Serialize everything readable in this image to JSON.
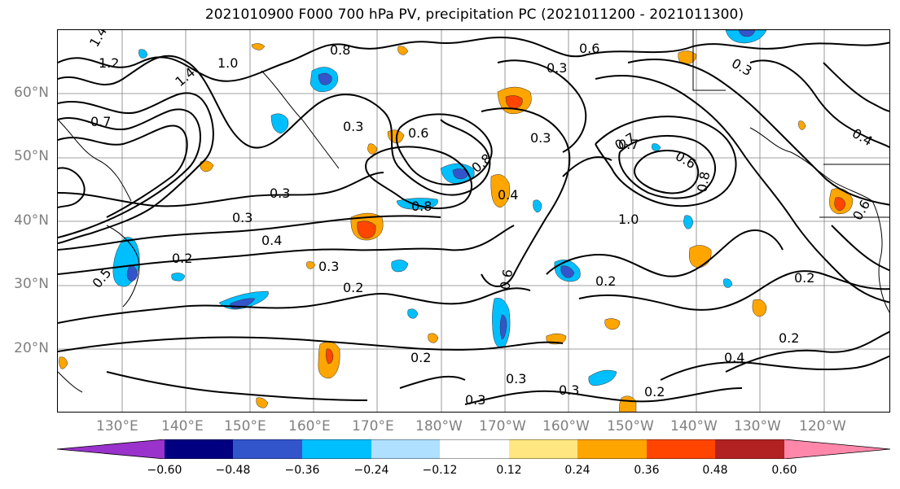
{
  "title": "2021010900 F000 700 hPa PV, precipitation PC (2021011200 - 2021011300)",
  "lat_labels": [
    "60°N",
    "50°N",
    "40°N",
    "30°N",
    "20°N"
  ],
  "lon_labels": [
    "130°E",
    "140°E",
    "150°E",
    "160°E",
    "170°E",
    "180°W",
    "170°W",
    "160°W",
    "150°W",
    "140°W",
    "130°W",
    "120°W"
  ],
  "contour_labels": [
    "1.4",
    "1.2",
    "1.0",
    "0.8",
    "0.6",
    "0.3",
    "0.7",
    "1.4",
    "0.4",
    "0.3",
    "0.3",
    "0.6",
    "0.7",
    "0.8",
    "0.8",
    "0.3",
    "0.4",
    "0.2",
    "0.3",
    "0.2",
    "0.3",
    "0.3",
    "0.2",
    "0.4",
    "0.2",
    "0.3",
    "0.2",
    "0.3",
    "0.5",
    "0.6",
    "0.7",
    "1.0",
    "0.8",
    "0.2",
    "0.3",
    "0.4",
    "0.6",
    "0.6",
    "0.2"
  ],
  "colorbar": {
    "ticks": [
      "−0.60",
      "−0.48",
      "−0.36",
      "−0.24",
      "−0.12",
      "0.12",
      "0.24",
      "0.36",
      "0.48",
      "0.60"
    ],
    "colors": [
      "#9933cc",
      "#000080",
      "#3355cc",
      "#00bfff",
      "#b0e0ff",
      "#ffffff",
      "#ffe680",
      "#ffa500",
      "#ff4500",
      "#b22222",
      "#ff88aa"
    ]
  }
}
